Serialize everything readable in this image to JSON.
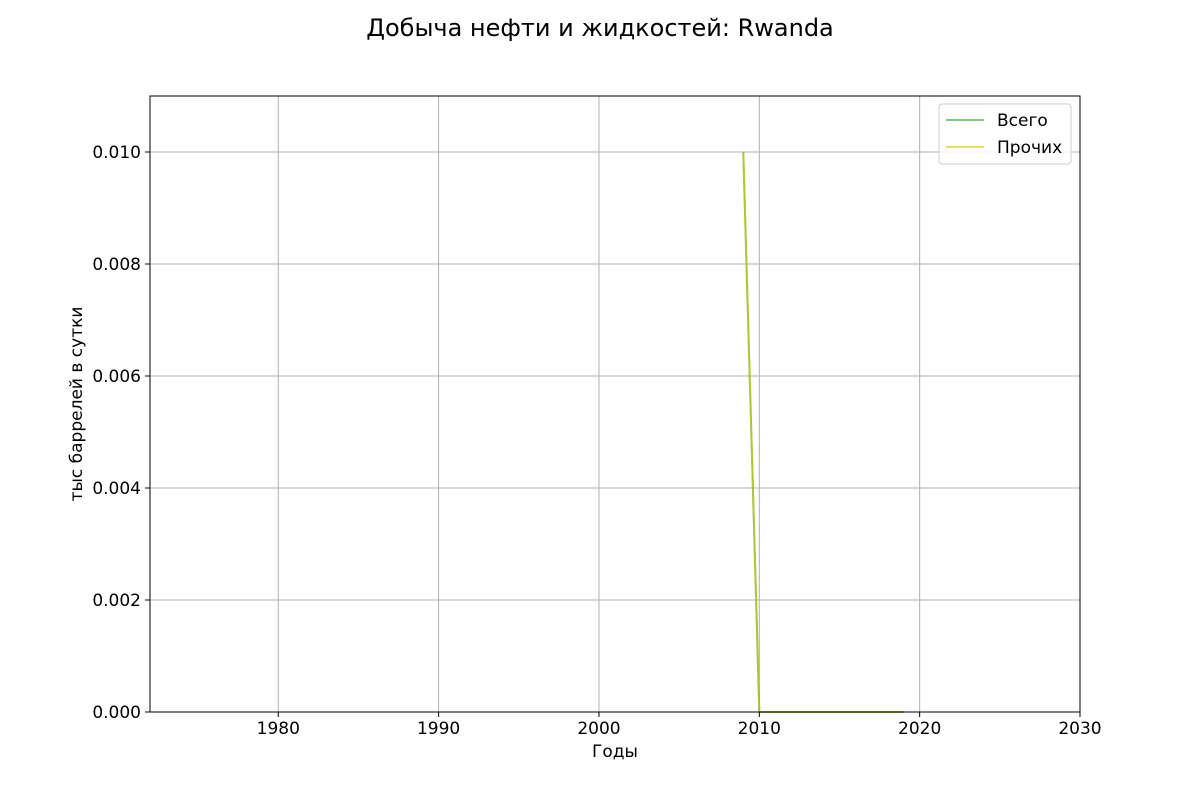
{
  "chart_data": {
    "type": "line",
    "title": "Добыча нефти и жидкостей: Rwanda",
    "xlabel": "Годы",
    "ylabel": "тыс баррелей в сутки",
    "xlim": [
      1972,
      2030
    ],
    "ylim": [
      0,
      0.011
    ],
    "xticks": [
      "1980",
      "1990",
      "2000",
      "2010",
      "2020",
      "2030"
    ],
    "yticks": [
      "0.000",
      "0.002",
      "0.004",
      "0.006",
      "0.008",
      "0.010"
    ],
    "grid": true,
    "legend_position": "top-right",
    "series": [
      {
        "name": "Всего",
        "color": "#2ca02c",
        "x": [
          2009,
          2010,
          2011,
          2012,
          2013,
          2014,
          2015,
          2016,
          2017,
          2018,
          2019
        ],
        "y": [
          0.01,
          0,
          0,
          0,
          0,
          0,
          0,
          0,
          0,
          0,
          0
        ]
      },
      {
        "name": "Прочих",
        "color": "#d4c700",
        "x": [
          2009,
          2010,
          2011,
          2012,
          2013,
          2014,
          2015,
          2016,
          2017,
          2018,
          2019
        ],
        "y": [
          0.01,
          0,
          0,
          0,
          0,
          0,
          0,
          0,
          0,
          0,
          0
        ]
      }
    ]
  }
}
